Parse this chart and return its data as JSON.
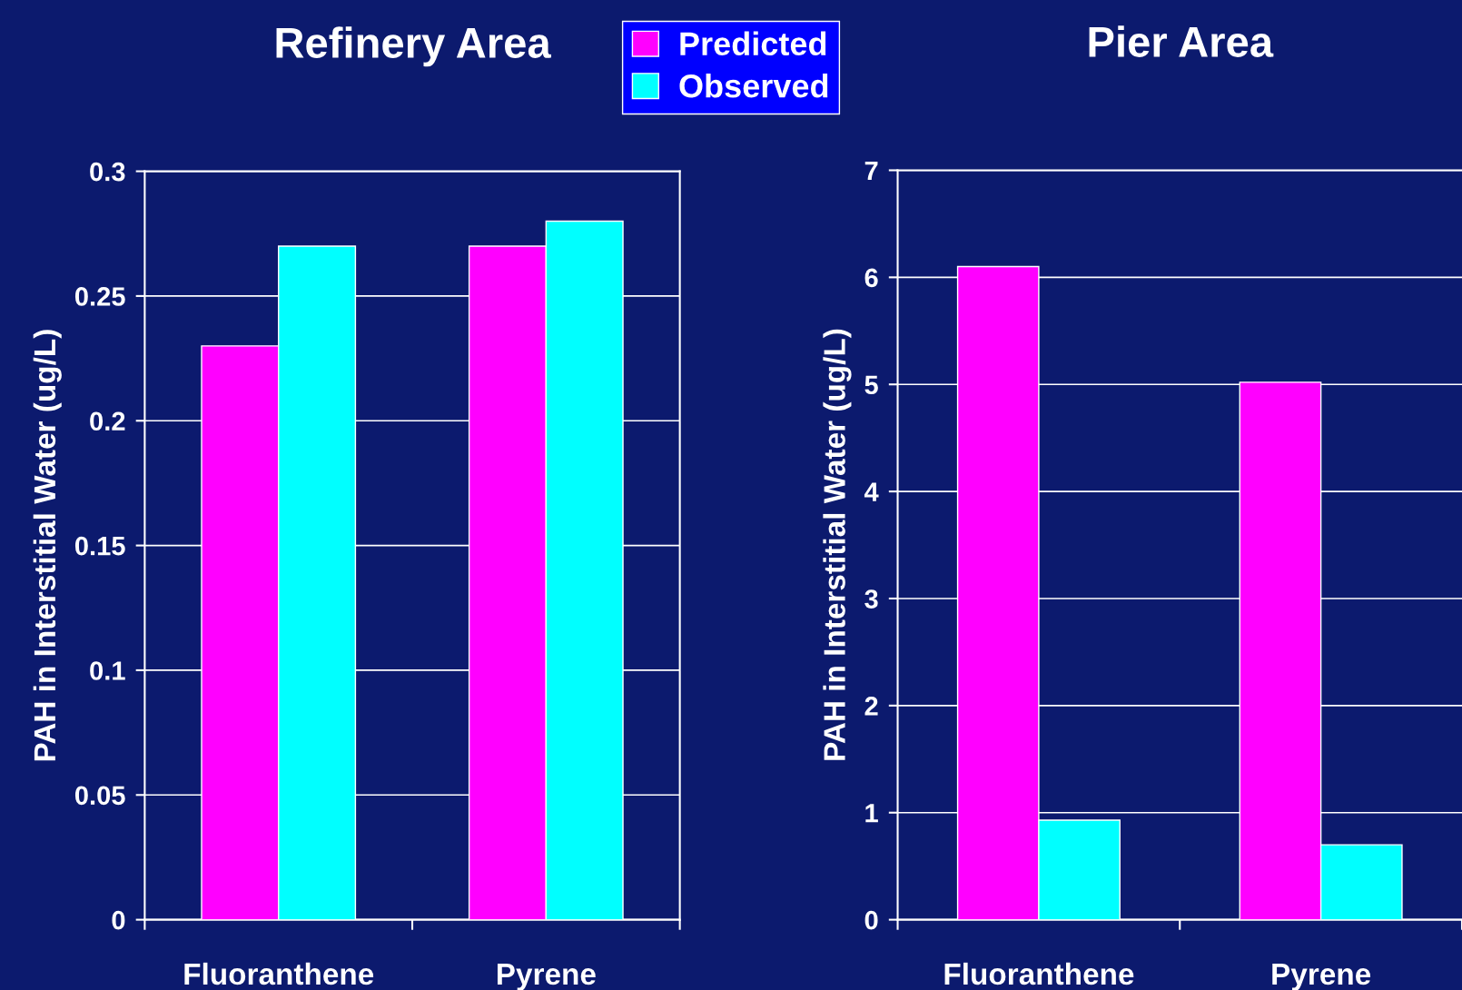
{
  "chart_data": [
    {
      "type": "bar",
      "title": "Refinery Area",
      "ylabel": "PAH in Interstitial Water (ug/L)",
      "categories": [
        "Fluoranthene",
        "Pyrene"
      ],
      "series": [
        {
          "name": "Predicted",
          "color": "#ff00ff",
          "values": [
            0.23,
            0.27
          ]
        },
        {
          "name": "Observed",
          "color": "#00ffff",
          "values": [
            0.27,
            0.28
          ]
        }
      ],
      "ylim": [
        0,
        0.3
      ],
      "yticks": [
        {
          "value": 0,
          "label": "0"
        },
        0.05,
        0.1,
        0.15,
        0.2,
        0.25,
        0.3
      ],
      "grid": "y",
      "legend": "top"
    },
    {
      "type": "bar",
      "title": "Pier Area",
      "ylabel": "PAH in Interstitial Water (ug/L)",
      "categories": [
        "Fluoranthene",
        "Pyrene"
      ],
      "series": [
        {
          "color": "#ff00ff",
          "values": [
            6.1,
            5.02
          ]
        },
        {
          "color": "#00ffff",
          "values": [
            0.93,
            0.7
          ]
        }
      ],
      "ylim": [
        0,
        7
      ],
      "yticks": [
        0,
        1,
        2,
        3,
        4,
        5,
        6,
        7
      ],
      "grid": "y"
    }
  ]
}
